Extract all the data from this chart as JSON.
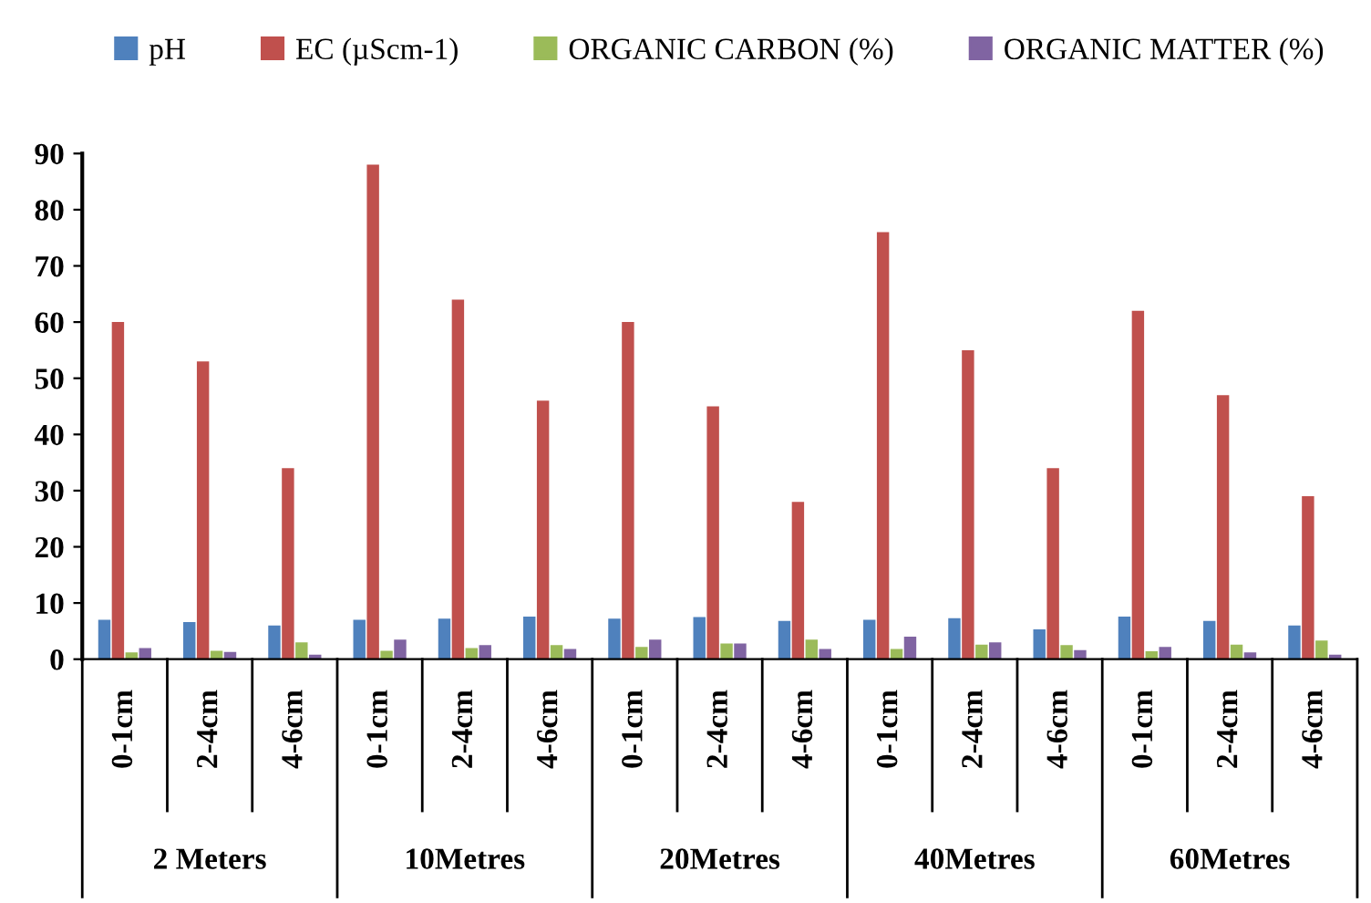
{
  "chart_data": {
    "type": "bar",
    "categories": [
      "0-1cm",
      "2-4cm",
      "4-6cm",
      "0-1cm",
      "2-4cm",
      "4-6cm",
      "0-1cm",
      "2-4cm",
      "4-6cm",
      "0-1cm",
      "2-4cm",
      "4-6cm",
      "0-1cm",
      "2-4cm",
      "4-6cm"
    ],
    "series": [
      {
        "name": "pH",
        "color": "#4f81bd",
        "values": [
          7,
          6.6,
          6,
          7,
          7.2,
          7.6,
          7.2,
          7.5,
          6.8,
          7,
          7.3,
          5.3,
          7.6,
          6.8,
          6
        ]
      },
      {
        "name": "EC (µScm-1)",
        "color": "#c0504d",
        "values": [
          60,
          53,
          34,
          88,
          64,
          46,
          60,
          45,
          28,
          76,
          55,
          34,
          62,
          47,
          29
        ]
      },
      {
        "name": "ORGANIC CARBON (%)",
        "color": "#9bbb59",
        "values": [
          1.2,
          1.5,
          3,
          1.5,
          2,
          2.5,
          2.2,
          2.8,
          3.5,
          1.8,
          2.6,
          2.5,
          1.4,
          2.6,
          3.3
        ]
      },
      {
        "name": "ORGANIC MATTER (%)",
        "color": "#8064a2",
        "values": [
          2,
          1.3,
          0.8,
          3.5,
          2.5,
          1.8,
          3.5,
          2.8,
          1.8,
          4,
          3,
          1.6,
          2.2,
          1.2,
          0.8
        ]
      }
    ],
    "annotations": [
      "2 Meters",
      "10Metres",
      "20Metres",
      "40Metres",
      "60Metres"
    ],
    "ylim": [
      0,
      90
    ],
    "yticks": [
      0,
      10,
      20,
      30,
      40,
      50,
      60,
      70,
      80,
      90
    ],
    "grid": false,
    "legend": "top"
  }
}
